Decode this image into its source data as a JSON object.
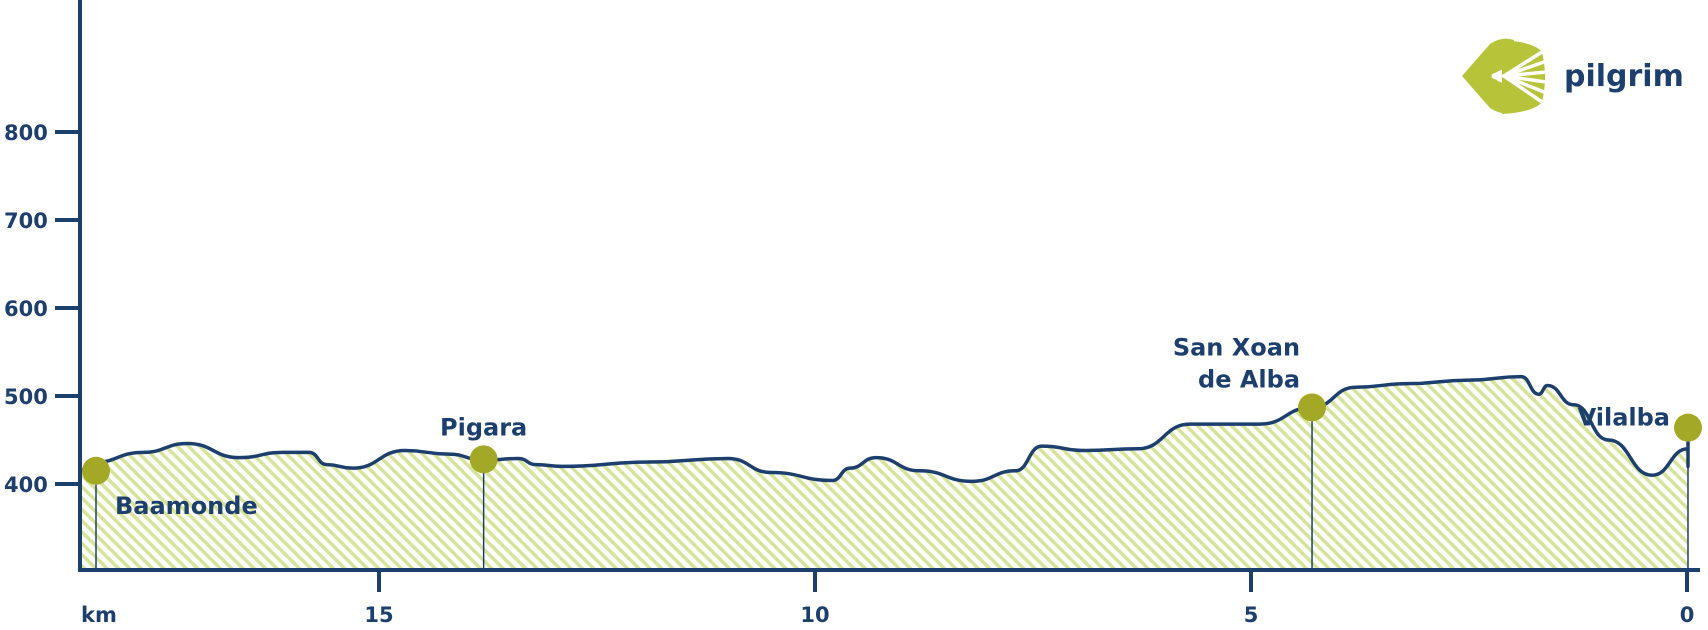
{
  "colors": {
    "axis": "#1d3f6e",
    "profile_line": "#1d3f6e",
    "fill_hatch": "#d6e49a",
    "marker": "#a3a826",
    "brand": "#b7c43a"
  },
  "logo": {
    "text": "pilgrim",
    "icon": "scallop-shell-icon"
  },
  "chart_data": {
    "type": "area",
    "title": "",
    "xlabel": "km",
    "ylabel": "",
    "x_reversed": true,
    "xlim": [
      19.6,
      0
    ],
    "ylim": [
      300,
      950
    ],
    "x_ticks": [
      15,
      10,
      5,
      0
    ],
    "x_tick_labels": [
      "15",
      "10",
      "5",
      "0"
    ],
    "y_ticks": [
      400,
      500,
      600,
      700,
      800
    ],
    "y_tick_labels": [
      "400",
      "500",
      "600",
      "700",
      "800"
    ],
    "grid": false,
    "series": [
      {
        "points": [
          [
            19.6,
            415
          ],
          [
            19.3,
            418
          ],
          [
            19.1,
            420
          ],
          [
            18.8,
            415
          ],
          [
            18.3,
            424
          ],
          [
            17.7,
            436
          ],
          [
            17.2,
            446
          ],
          [
            16.6,
            430
          ],
          [
            16.1,
            436
          ],
          [
            15.8,
            436
          ],
          [
            15.6,
            422
          ],
          [
            15.3,
            418
          ],
          [
            14.7,
            438
          ],
          [
            14.2,
            434
          ],
          [
            13.8,
            427
          ],
          [
            13.4,
            429
          ],
          [
            13.2,
            422
          ],
          [
            12.9,
            420
          ],
          [
            11.9,
            425
          ],
          [
            11.0,
            429
          ],
          [
            10.5,
            413
          ],
          [
            9.8,
            404
          ],
          [
            9.6,
            418
          ],
          [
            9.3,
            430
          ],
          [
            8.8,
            415
          ],
          [
            8.2,
            403
          ],
          [
            7.7,
            415
          ],
          [
            7.4,
            443
          ],
          [
            6.9,
            438
          ],
          [
            6.3,
            440
          ],
          [
            5.7,
            468
          ],
          [
            4.9,
            468
          ],
          [
            4.3,
            487
          ],
          [
            3.8,
            510
          ],
          [
            3.2,
            514
          ],
          [
            2.5,
            518
          ],
          [
            1.9,
            522
          ],
          [
            1.7,
            502
          ],
          [
            1.6,
            512
          ],
          [
            1.3,
            490
          ],
          [
            0.9,
            450
          ],
          [
            0.4,
            410
          ],
          [
            -0.2,
            440
          ],
          [
            -0.5,
            455
          ],
          [
            -0.9,
            420
          ],
          [
            -1.3,
            425
          ],
          [
            -1.8,
            438
          ],
          [
            -2.1,
            455
          ]
        ]
      }
    ],
    "annotations": [
      {
        "label_lines": [
          "Baamonde"
        ],
        "x": 19.6,
        "y": 415,
        "label_pos": "below-right"
      },
      {
        "label_lines": [
          "Pigara"
        ],
        "x": 13.8,
        "y": 428,
        "label_pos": "above"
      },
      {
        "label_lines": [
          "San Xoan",
          "de Alba"
        ],
        "x": 4.3,
        "y": 487,
        "label_pos": "above-left"
      },
      {
        "label_lines": [
          "Vilalba"
        ],
        "x": -2.1,
        "y": 464,
        "label_pos": "left"
      }
    ]
  }
}
